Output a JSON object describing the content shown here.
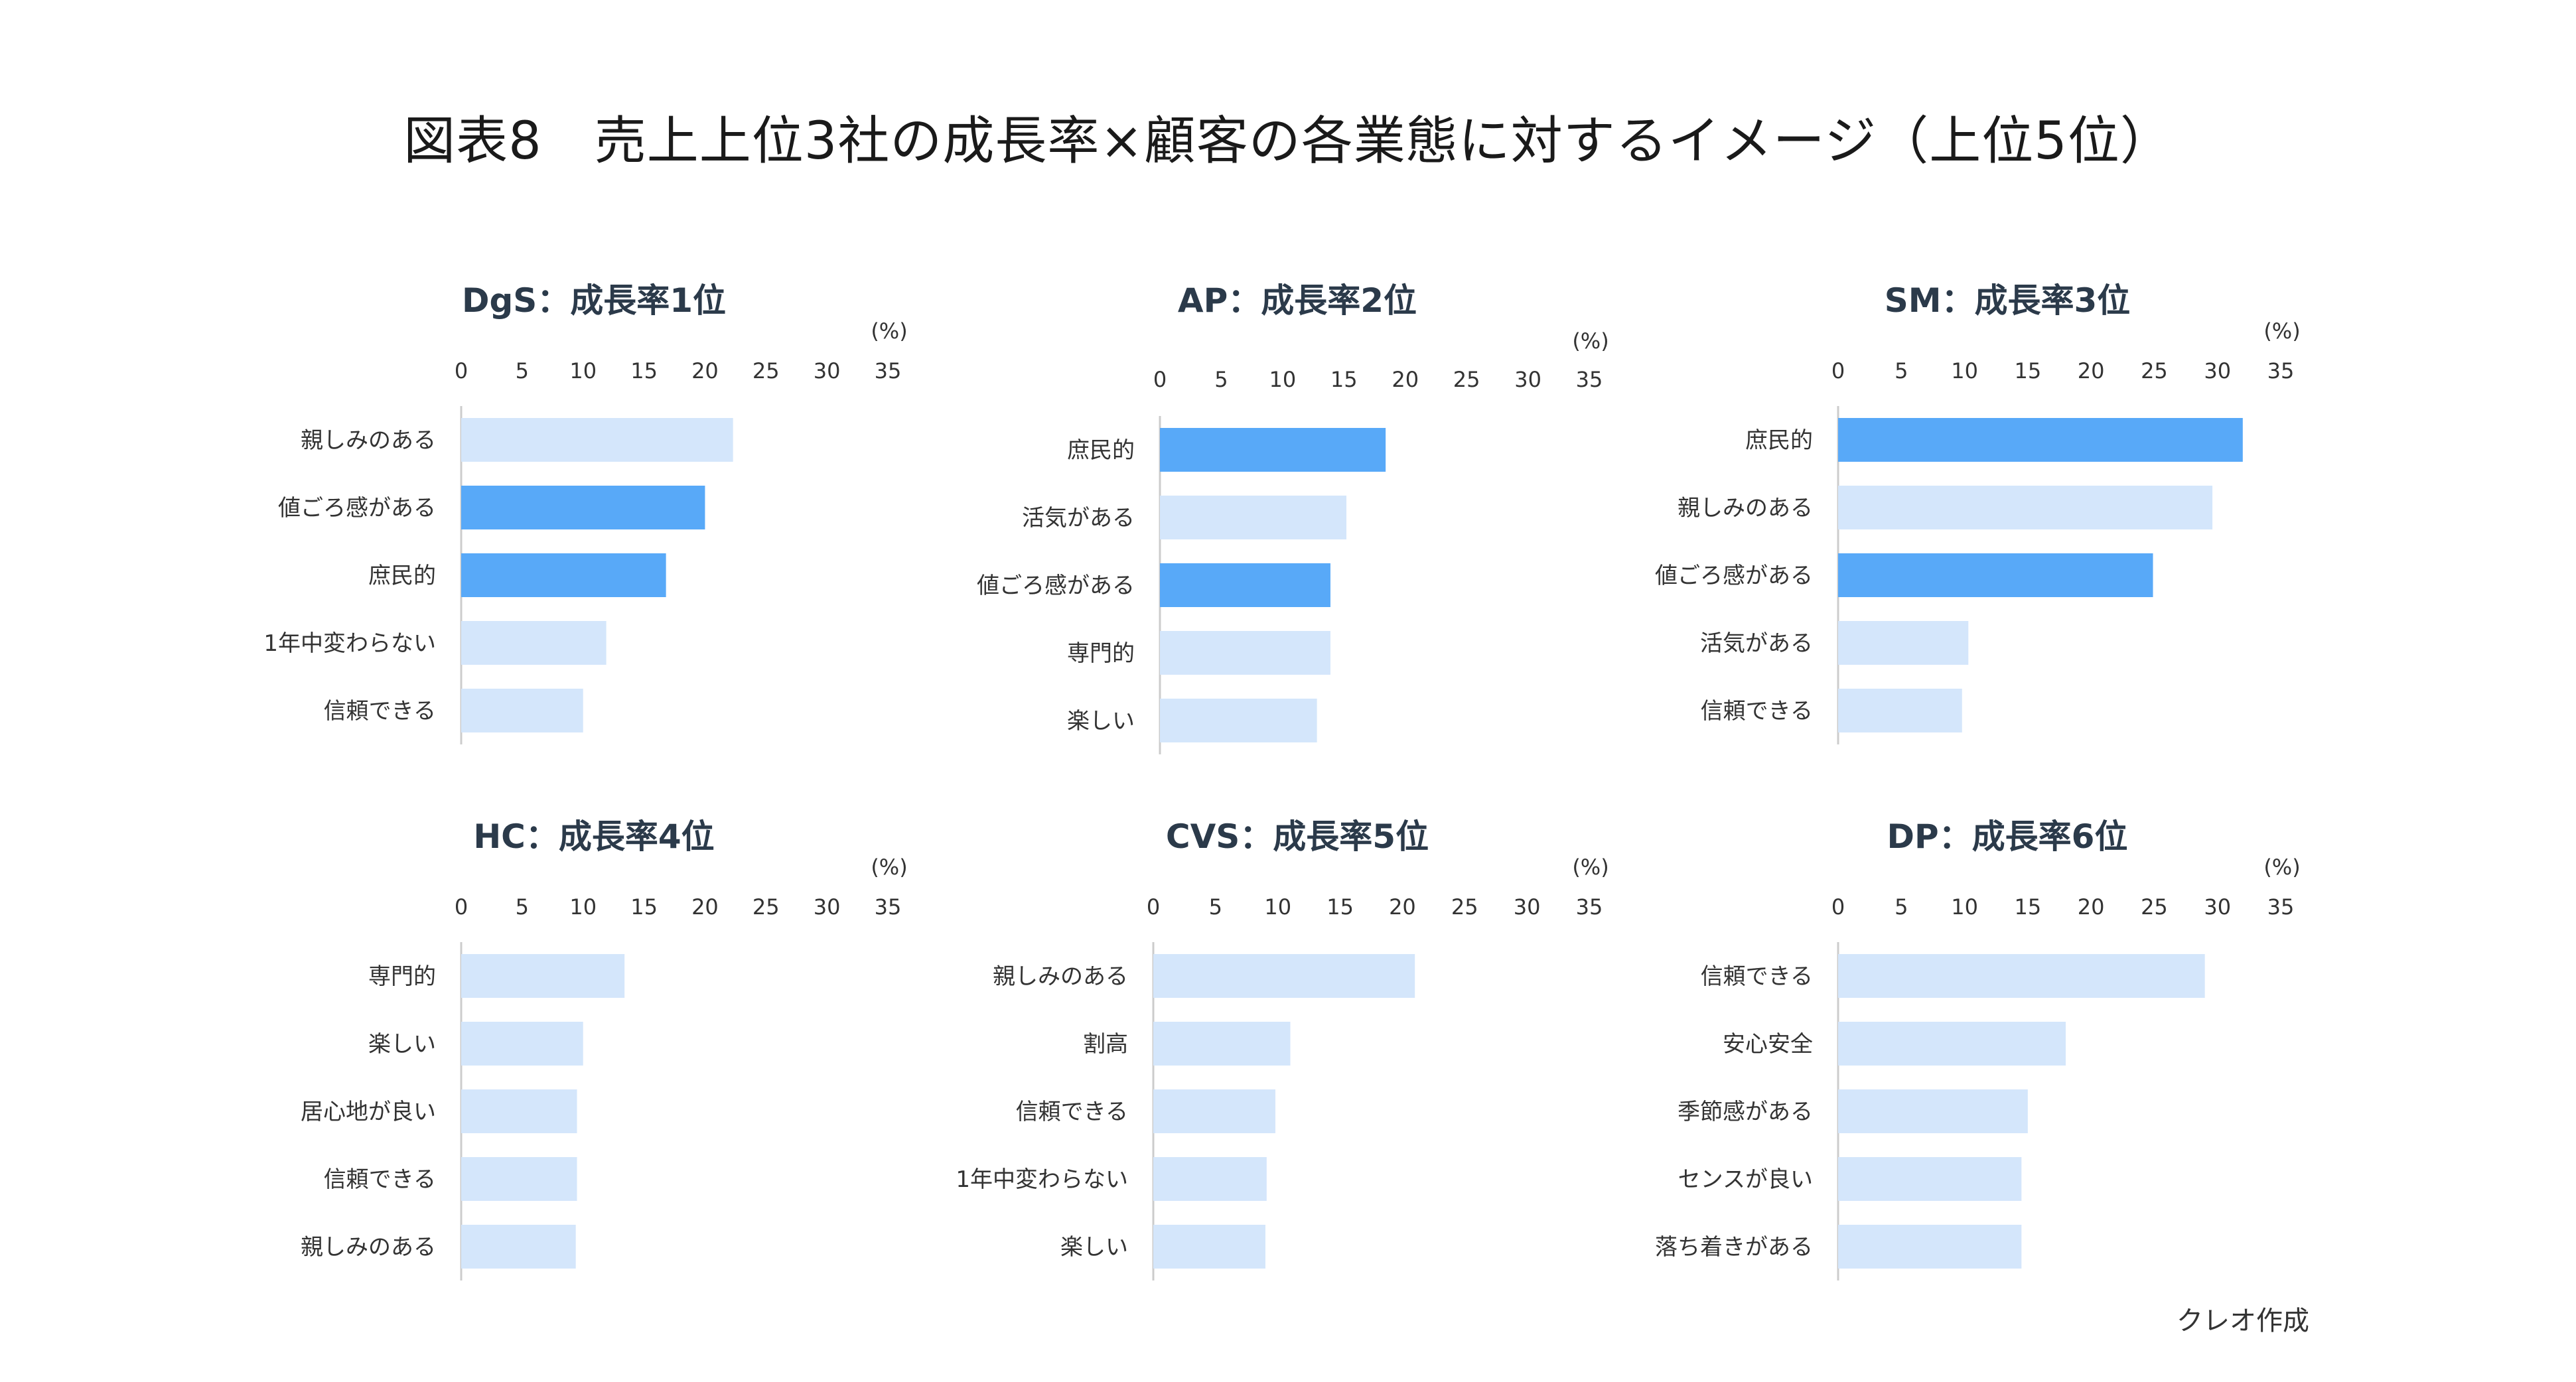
{
  "title": "図表8　売上上位3社の成長率×顧客の各業態に対するイメージ（上位5位）",
  "source": "クレオ作成",
  "colors": {
    "highlight": "#58a9f8",
    "normal": "#d4e6fb",
    "axis": "#cccccc",
    "text": "#333333",
    "title": "#2b3a4a"
  },
  "chart_data": [
    {
      "type": "bar",
      "orientation": "horizontal",
      "title": "DgS：成長率1位",
      "unit_label": "(%)",
      "xlim": [
        0,
        35
      ],
      "ticks": [
        0,
        5,
        10,
        15,
        20,
        25,
        30,
        35
      ],
      "categories": [
        "親しみのある",
        "値ごろ感がある",
        "庶民的",
        "1年中変わらない",
        "信頼できる"
      ],
      "values": [
        22.3,
        20.0,
        16.8,
        11.9,
        10.0
      ],
      "highlighted": [
        false,
        true,
        true,
        false,
        false
      ]
    },
    {
      "type": "bar",
      "orientation": "horizontal",
      "title": "AP：成長率2位",
      "unit_label": "(%)",
      "xlim": [
        0,
        35
      ],
      "ticks": [
        0,
        5,
        10,
        15,
        20,
        25,
        30,
        35
      ],
      "categories": [
        "庶民的",
        "活気がある",
        "値ごろ感がある",
        "専門的",
        "楽しい"
      ],
      "values": [
        18.4,
        15.2,
        13.9,
        13.9,
        12.8
      ],
      "highlighted": [
        true,
        false,
        true,
        false,
        false
      ]
    },
    {
      "type": "bar",
      "orientation": "horizontal",
      "title": "SM：成長率3位",
      "unit_label": "(%)",
      "xlim": [
        0,
        35
      ],
      "ticks": [
        0,
        5,
        10,
        15,
        20,
        25,
        30,
        35
      ],
      "categories": [
        "庶民的",
        "親しみのある",
        "値ごろ感がある",
        "活気がある",
        "信頼できる"
      ],
      "values": [
        32.0,
        29.6,
        24.9,
        10.3,
        9.8
      ],
      "highlighted": [
        true,
        false,
        true,
        false,
        false
      ]
    },
    {
      "type": "bar",
      "orientation": "horizontal",
      "title": "HC：成長率4位",
      "unit_label": "(%)",
      "xlim": [
        0,
        35
      ],
      "ticks": [
        0,
        5,
        10,
        15,
        20,
        25,
        30,
        35
      ],
      "categories": [
        "専門的",
        "楽しい",
        "居心地が良い",
        "信頼できる",
        "親しみのある"
      ],
      "values": [
        13.4,
        10.0,
        9.5,
        9.5,
        9.4
      ],
      "highlighted": [
        false,
        false,
        false,
        false,
        false
      ]
    },
    {
      "type": "bar",
      "orientation": "horizontal",
      "title": "CVS：成長率5位",
      "unit_label": "(%)",
      "xlim": [
        0,
        35
      ],
      "ticks": [
        0,
        5,
        10,
        15,
        20,
        25,
        30,
        35
      ],
      "categories": [
        "親しみのある",
        "割高",
        "信頼できる",
        "1年中変わらない",
        "楽しい"
      ],
      "values": [
        21.0,
        11.0,
        9.8,
        9.1,
        9.0
      ],
      "highlighted": [
        false,
        false,
        false,
        false,
        false
      ]
    },
    {
      "type": "bar",
      "orientation": "horizontal",
      "title": "DP：成長率6位",
      "unit_label": "(%)",
      "xlim": [
        0,
        35
      ],
      "ticks": [
        0,
        5,
        10,
        15,
        20,
        25,
        30,
        35
      ],
      "categories": [
        "信頼できる",
        "安心安全",
        "季節感がある",
        "センスが良い",
        "落ち着きがある"
      ],
      "values": [
        29.0,
        18.0,
        15.0,
        14.5,
        14.5
      ],
      "highlighted": [
        false,
        false,
        false,
        false,
        false
      ]
    }
  ]
}
